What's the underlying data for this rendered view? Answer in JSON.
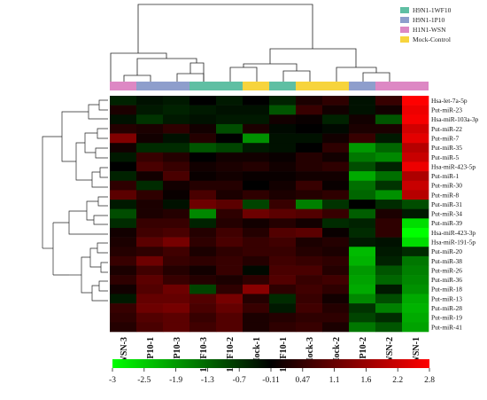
{
  "chart_data": {
    "type": "heatmap",
    "columns": [
      "WSN-3",
      "1P10-1",
      "1P10-3",
      "1WF10-3",
      "1WF10-2",
      "Mock-1",
      "1WF10-1",
      "Mock-3",
      "Mock-2",
      "1P10-2",
      "WSN-2",
      "WSN-1"
    ],
    "column_groups": [
      "H1N1-WSN",
      "H9N1-1P10",
      "H9N1-1P10",
      "H9N1-1WF10",
      "H9N1-1WF10",
      "Mock-Control",
      "H9N1-1WF10",
      "Mock-Control",
      "Mock-Control",
      "H9N1-1P10",
      "H1N1-WSN",
      "H1N1-WSN"
    ],
    "rows": [
      "Hsa-let-7a-5p",
      "Put-miR-23",
      "Hsa-miR-103a-3p",
      "Put-miR-22",
      "Put-miR-7",
      "Put-miR-35",
      "Put-miR-5",
      "Hsa-miR-423-5p",
      "Put-miR-1",
      "Put-miR-30",
      "Put-miR-8",
      "Put-miR-31",
      "Put-miR-34",
      "Put-miR-39",
      "Hsa-miR-423-3p",
      "Hsa-miR-191-5p",
      "Put-miR-20",
      "Put-miR-38",
      "Put-miR-26",
      "Put-miR-36",
      "Put-miR-18",
      "Put-miR-13",
      "Put-miR-28",
      "Put-miR-19",
      "Put-miR-41"
    ],
    "values": [
      [
        -0.4,
        -0.2,
        -0.3,
        0.0,
        -0.3,
        0.0,
        -0.4,
        0.3,
        0.5,
        -0.2,
        0.6,
        2.8
      ],
      [
        0.3,
        -0.3,
        -0.4,
        -0.3,
        -0.2,
        -0.2,
        -1.0,
        0.6,
        0.2,
        -0.2,
        0.2,
        2.6
      ],
      [
        -0.2,
        -0.6,
        -0.3,
        -0.2,
        -0.3,
        -0.3,
        0.2,
        0.1,
        -0.4,
        0.2,
        -1.0,
        2.7
      ],
      [
        0.4,
        0.3,
        0.5,
        0.2,
        -0.9,
        0.3,
        -0.1,
        0.0,
        -0.1,
        0.3,
        0.3,
        2.3
      ],
      [
        1.4,
        0.2,
        -0.2,
        0.4,
        0.0,
        -1.7,
        -0.2,
        -0.2,
        0.2,
        0.6,
        -0.3,
        2.5
      ],
      [
        0.2,
        -0.5,
        -0.5,
        -1.0,
        -0.8,
        -0.3,
        -0.2,
        0.0,
        0.5,
        -1.8,
        -1.2,
        2.0
      ],
      [
        -0.3,
        0.6,
        0.4,
        0.0,
        0.2,
        0.2,
        0.1,
        0.4,
        0.2,
        -1.4,
        -1.6,
        2.2
      ],
      [
        0.0,
        0.8,
        0.6,
        0.2,
        0.3,
        0.4,
        0.2,
        0.4,
        0.5,
        -0.9,
        -0.4,
        2.6
      ],
      [
        -0.4,
        0.2,
        0.8,
        0.1,
        0.2,
        0.1,
        0.1,
        0.2,
        0.2,
        -2.0,
        -1.3,
        1.9
      ],
      [
        0.5,
        -0.5,
        0.2,
        0.4,
        0.4,
        0.0,
        0.2,
        0.6,
        0.1,
        -1.3,
        -0.6,
        2.2
      ],
      [
        1.0,
        0.5,
        0.1,
        0.8,
        0.3,
        0.5,
        0.3,
        0.4,
        0.5,
        -1.2,
        -1.7,
        2.0
      ],
      [
        -0.3,
        0.3,
        -0.2,
        1.2,
        1.0,
        -0.8,
        0.6,
        -1.5,
        -0.6,
        0.0,
        -0.5,
        -0.9
      ],
      [
        -0.9,
        0.3,
        0.4,
        -1.6,
        0.5,
        1.2,
        1.0,
        0.9,
        0.6,
        -1.1,
        0.3,
        -0.3
      ],
      [
        -0.5,
        0.6,
        0.6,
        -0.4,
        0.4,
        0.2,
        0.4,
        0.2,
        -0.5,
        -0.4,
        0.5,
        -2.6
      ],
      [
        0.2,
        0.7,
        0.8,
        0.4,
        0.7,
        0.4,
        0.9,
        1.0,
        0.1,
        -0.5,
        0.5,
        -3.0
      ],
      [
        0.3,
        1.0,
        1.3,
        0.5,
        0.8,
        0.6,
        0.7,
        0.3,
        0.4,
        -0.3,
        -0.2,
        -2.6
      ],
      [
        0.4,
        0.5,
        0.7,
        0.3,
        0.5,
        0.6,
        0.6,
        0.4,
        0.3,
        -2.2,
        -0.3,
        -0.5
      ],
      [
        0.6,
        1.2,
        0.6,
        0.5,
        0.6,
        0.4,
        0.7,
        0.6,
        0.5,
        -2.1,
        -0.4,
        -1.4
      ],
      [
        0.3,
        0.7,
        0.4,
        0.2,
        0.6,
        -0.1,
        0.8,
        0.8,
        0.4,
        -1.8,
        -1.0,
        -1.5
      ],
      [
        0.5,
        1.0,
        0.6,
        0.4,
        0.3,
        0.5,
        0.9,
        0.6,
        0.7,
        -1.9,
        -1.2,
        -1.6
      ],
      [
        0.2,
        0.9,
        1.2,
        -0.8,
        0.5,
        1.5,
        0.5,
        0.7,
        0.5,
        -2.0,
        -0.3,
        -1.7
      ],
      [
        -0.3,
        1.1,
        1.1,
        0.9,
        1.3,
        0.4,
        -0.5,
        0.6,
        0.2,
        -1.6,
        -0.9,
        -2.0
      ],
      [
        0.6,
        1.2,
        1.3,
        0.8,
        1.1,
        0.6,
        -0.3,
        0.7,
        0.4,
        -0.6,
        -1.5,
        -2.1
      ],
      [
        0.5,
        0.9,
        1.0,
        0.6,
        0.9,
        0.3,
        0.4,
        0.5,
        0.5,
        -0.8,
        -0.5,
        -2.0
      ],
      [
        0.4,
        0.8,
        1.0,
        0.7,
        0.9,
        0.3,
        0.5,
        0.6,
        0.3,
        -1.4,
        -1.0,
        -1.9
      ]
    ],
    "color_scale": {
      "min": -3,
      "max": 2.8,
      "colors": [
        "#00ff00",
        "#000000",
        "#ff0000"
      ],
      "tick_labels": [
        "-3",
        "-2.5",
        "-1.9",
        "-1.3",
        "-0.7",
        "-0.11",
        "0.47",
        "1.1",
        "1.6",
        "2.2",
        "2.8"
      ]
    },
    "legend": [
      {
        "name": "H9N1-1WF10",
        "color": "#5fbfa3"
      },
      {
        "name": "H9N1-1P10",
        "color": "#8e9ecc"
      },
      {
        "name": "H1N1-WSN",
        "color": "#dd88c4"
      },
      {
        "name": "Mock-Control",
        "color": "#f7d43d"
      }
    ]
  }
}
